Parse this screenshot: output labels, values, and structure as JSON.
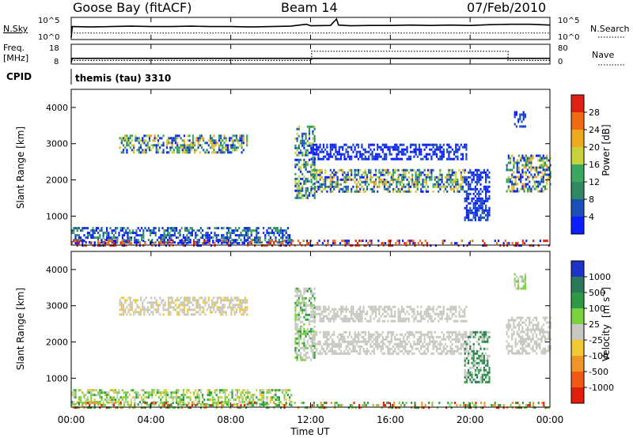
{
  "header": {
    "title": "Goose Bay (fitACF)",
    "beam": "Beam 14",
    "date": "07/Feb/2010"
  },
  "colors": {
    "power_scale": [
      "#0a1eff",
      "#1a4fb8",
      "#2f8a64",
      "#3aa860",
      "#c8d23c",
      "#f0a81c",
      "#f06a14",
      "#e02010"
    ],
    "velocity_scale": [
      "#1e32c8",
      "#2a7a5a",
      "#2f9a46",
      "#7ad240",
      "#c8c8c0",
      "#f0c832",
      "#f09628",
      "#f05a14",
      "#e01e0a"
    ],
    "ground_scatter": "#c8c8c0"
  },
  "nsky_panel": {
    "label_left": "N.Sky",
    "label_right": "N.Search",
    "left_ticks": [
      "10^5",
      "10^0"
    ],
    "right_ticks": [
      "10^5",
      "10^0"
    ]
  },
  "freq_panel": {
    "label_left_top": "Freq.",
    "label_left_bottom": "[MHz]",
    "label_right": "Nave",
    "left_ticks": [
      "18",
      "8"
    ],
    "right_ticks": [
      "80",
      "0"
    ]
  },
  "cpid": {
    "label": "CPID",
    "value": "themis (tau) 3310"
  },
  "chart_data": [
    {
      "type": "line",
      "name": "nsky-nsearch",
      "x_unit": "hours UT",
      "series": [
        {
          "name": "N.Sky",
          "x": [
            0,
            0.05,
            1,
            2,
            3,
            4,
            5,
            6,
            7,
            8,
            9,
            10,
            11,
            11.8,
            12,
            13,
            13.3,
            13.4,
            14,
            15,
            16,
            17,
            18,
            19,
            20,
            21,
            22,
            23,
            24
          ],
          "values": [
            0.1,
            3.0,
            2.9,
            3.0,
            3.1,
            3.0,
            3.0,
            3.1,
            3.0,
            3.0,
            2.9,
            3.0,
            3.1,
            3.6,
            3.2,
            3.3,
            5.0,
            3.4,
            3.2,
            3.3,
            3.3,
            3.4,
            3.3,
            3.4,
            3.3,
            3.5,
            3.6,
            3.6,
            3.4
          ]
        },
        {
          "name": "N.Search",
          "x": [
            0,
            24
          ],
          "values": [
            1.3,
            1.3
          ]
        }
      ],
      "ylim": [
        0,
        5
      ]
    },
    {
      "type": "line",
      "name": "frequency-nave",
      "x_unit": "hours UT",
      "series": [
        {
          "name": "Freq.",
          "x": [
            0,
            0.05,
            12.05,
            12.05,
            21.9,
            21.9,
            24
          ],
          "values": [
            8,
            10.5,
            10.5,
            10.5,
            10.5,
            10.5,
            10.5
          ]
        },
        {
          "name": "Nave",
          "x": [
            0,
            12.05,
            12.05,
            21.9,
            21.9,
            24
          ],
          "values": [
            10,
            10,
            54,
            54,
            10,
            10
          ]
        }
      ],
      "freq_ylim": [
        8,
        18
      ],
      "nave_ylim": [
        0,
        80
      ]
    },
    {
      "type": "heatmap",
      "name": "power",
      "xlim": [
        0,
        24
      ],
      "ylim": [
        200,
        4500
      ],
      "yticks": [
        1000,
        2000,
        3000,
        4000
      ],
      "ylabel": "Slant Range [km]",
      "colorbar_label": "Power [dB]",
      "colorbar_ticks": [
        "4",
        "8",
        "12",
        "16",
        "20",
        "24",
        "28"
      ],
      "regions": [
        {
          "t0": 2.4,
          "t1": 8.8,
          "r0": 2750,
          "r1": 3250,
          "levels": [
            0,
            1,
            2,
            3,
            4,
            5
          ]
        },
        {
          "t0": 0.0,
          "t1": 11.0,
          "r0": 250,
          "r1": 700,
          "levels": [
            0,
            0,
            1,
            2,
            3
          ]
        },
        {
          "t0": 11.2,
          "t1": 12.2,
          "r0": 1500,
          "r1": 3500,
          "levels": [
            0,
            1,
            2,
            3,
            4
          ]
        },
        {
          "t0": 12.0,
          "t1": 19.8,
          "r0": 1700,
          "r1": 2300,
          "levels": [
            0,
            1,
            2,
            3,
            4,
            5
          ]
        },
        {
          "t0": 12.0,
          "t1": 19.8,
          "r0": 2600,
          "r1": 3000,
          "levels": [
            0,
            0,
            1
          ]
        },
        {
          "t0": 19.7,
          "t1": 21.0,
          "r0": 900,
          "r1": 2300,
          "levels": [
            0,
            1
          ]
        },
        {
          "t0": 21.8,
          "t1": 24.0,
          "r0": 1700,
          "r1": 2700,
          "levels": [
            0,
            1,
            2,
            3,
            4,
            5
          ]
        },
        {
          "t0": 22.2,
          "t1": 22.8,
          "r0": 3500,
          "r1": 3900,
          "levels": [
            0,
            1
          ]
        },
        {
          "t0": 0.0,
          "t1": 24.0,
          "r0": 200,
          "r1": 350,
          "levels": [
            0,
            6,
            7
          ]
        }
      ]
    },
    {
      "type": "heatmap",
      "name": "velocity",
      "xlim": [
        0,
        24
      ],
      "ylim": [
        200,
        4500
      ],
      "yticks": [
        1000,
        2000,
        3000,
        4000
      ],
      "ylabel": "Slant Range [km]",
      "xlabel": "Time UT",
      "xticks": [
        "00:00",
        "04:00",
        "08:00",
        "12:00",
        "16:00",
        "20:00",
        "00:00"
      ],
      "colorbar_label": "Velocity",
      "colorbar_unit": "[m s",
      "colorbar_unit_exp": "-1",
      "colorbar_unit_close": "]",
      "colorbar_ticks": [
        "1000",
        "500",
        "100",
        "25",
        "-25",
        "-100",
        "-500",
        "-1000"
      ],
      "regions": [
        {
          "t0": 2.4,
          "t1": 8.8,
          "r0": 2750,
          "r1": 3250,
          "levels": [
            4,
            4,
            4,
            5
          ]
        },
        {
          "t0": 0.0,
          "t1": 11.0,
          "r0": 250,
          "r1": 700,
          "levels": [
            3,
            3,
            2,
            4,
            5
          ]
        },
        {
          "t0": 11.2,
          "t1": 12.2,
          "r0": 1500,
          "r1": 3500,
          "levels": [
            4,
            4,
            3,
            2
          ]
        },
        {
          "t0": 12.0,
          "t1": 19.8,
          "r0": 1700,
          "r1": 2300,
          "levels": [
            4,
            4,
            4,
            4
          ]
        },
        {
          "t0": 12.0,
          "t1": 19.8,
          "r0": 2600,
          "r1": 3000,
          "levels": [
            4,
            4
          ]
        },
        {
          "t0": 19.7,
          "t1": 21.0,
          "r0": 900,
          "r1": 2300,
          "levels": [
            1,
            2,
            4
          ]
        },
        {
          "t0": 21.8,
          "t1": 24.0,
          "r0": 1700,
          "r1": 2700,
          "levels": [
            4,
            4,
            4
          ]
        },
        {
          "t0": 22.2,
          "t1": 22.8,
          "r0": 3500,
          "r1": 3900,
          "levels": [
            4,
            3
          ]
        },
        {
          "t0": 0.0,
          "t1": 24.0,
          "r0": 200,
          "r1": 350,
          "levels": [
            2,
            3,
            6,
            8
          ]
        }
      ]
    }
  ]
}
